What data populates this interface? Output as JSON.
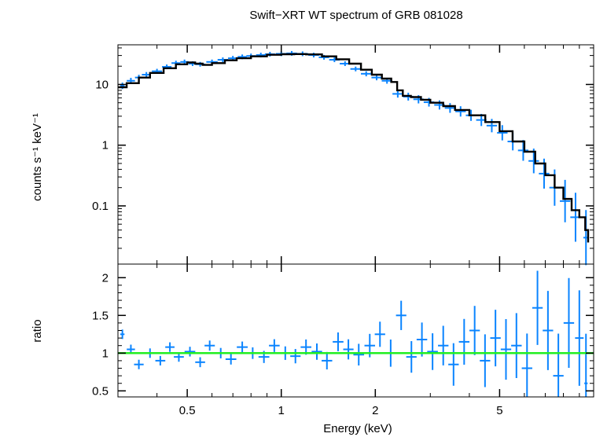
{
  "chart_data": {
    "type": "line",
    "title": "Swift−XRT WT spectrum of GRB 081028",
    "xlabel": "Energy (keV)",
    "x_scale": "log",
    "xlim": [
      0.3,
      10
    ],
    "x_ticks": [
      0.5,
      1,
      2,
      5
    ],
    "x_tick_labels": [
      "0.5",
      "1",
      "2",
      "5"
    ],
    "panels": [
      {
        "id": "spectrum",
        "ylabel": "counts s⁻¹ keV⁻¹",
        "y_scale": "log",
        "ylim": [
          0.011,
          45
        ],
        "y_ticks": [
          0.1,
          1,
          10
        ],
        "y_tick_labels": [
          "0.1",
          "1",
          "10"
        ],
        "series": [
          {
            "name": "data",
            "style": "errorbar",
            "color": "#0a84ff",
            "points": [
              [
                0.31,
                9.5
              ],
              [
                0.33,
                11.5
              ],
              [
                0.35,
                13.0
              ],
              [
                0.37,
                14.5
              ],
              [
                0.4,
                16.5
              ],
              [
                0.43,
                19.5
              ],
              [
                0.46,
                22.5
              ],
              [
                0.49,
                23.5
              ],
              [
                0.52,
                22.0
              ],
              [
                0.55,
                21.5
              ],
              [
                0.6,
                23.5
              ],
              [
                0.65,
                25.5
              ],
              [
                0.7,
                27.0
              ],
              [
                0.75,
                28.5
              ],
              [
                0.8,
                29.5
              ],
              [
                0.86,
                30.5
              ],
              [
                0.92,
                31.5
              ],
              [
                1.0,
                32.0
              ],
              [
                1.08,
                32.5
              ],
              [
                1.17,
                32.0
              ],
              [
                1.27,
                30.5
              ],
              [
                1.37,
                28.0
              ],
              [
                1.48,
                25.5
              ],
              [
                1.6,
                22.0
              ],
              [
                1.73,
                18.0
              ],
              [
                1.87,
                15.0
              ],
              [
                2.02,
                13.0
              ],
              [
                2.18,
                11.5
              ],
              [
                2.36,
                7.0
              ],
              [
                2.55,
                6.3
              ],
              [
                2.75,
                5.7
              ],
              [
                2.97,
                5.1
              ],
              [
                3.21,
                4.6
              ],
              [
                3.47,
                4.1
              ],
              [
                3.75,
                3.6
              ],
              [
                4.05,
                3.1
              ],
              [
                4.37,
                2.6
              ],
              [
                4.72,
                2.1
              ],
              [
                5.1,
                1.6
              ],
              [
                5.51,
                1.15
              ],
              [
                5.95,
                0.82
              ],
              [
                6.43,
                0.55
              ],
              [
                6.94,
                0.34
              ],
              [
                7.5,
                0.2
              ],
              [
                8.1,
                0.12
              ],
              [
                8.75,
                0.065
              ],
              [
                9.45,
                0.03
              ]
            ]
          },
          {
            "name": "model",
            "style": "step",
            "color": "#000000",
            "points": [
              [
                0.3,
                9.0
              ],
              [
                0.32,
                10.5
              ],
              [
                0.35,
                13.0
              ],
              [
                0.38,
                15.5
              ],
              [
                0.42,
                18.5
              ],
              [
                0.46,
                21.5
              ],
              [
                0.5,
                23.0
              ],
              [
                0.53,
                22.0
              ],
              [
                0.56,
                21.0
              ],
              [
                0.6,
                22.5
              ],
              [
                0.66,
                25.0
              ],
              [
                0.72,
                27.0
              ],
              [
                0.8,
                29.0
              ],
              [
                0.9,
                30.8
              ],
              [
                1.0,
                31.5
              ],
              [
                1.1,
                31.7
              ],
              [
                1.2,
                31.3
              ],
              [
                1.35,
                29.0
              ],
              [
                1.5,
                26.0
              ],
              [
                1.65,
                22.0
              ],
              [
                1.8,
                17.5
              ],
              [
                1.95,
                14.5
              ],
              [
                2.1,
                12.5
              ],
              [
                2.25,
                11.0
              ],
              [
                2.35,
                8.0
              ],
              [
                2.45,
                6.5
              ],
              [
                2.6,
                6.2
              ],
              [
                2.8,
                5.6
              ],
              [
                3.0,
                5.0
              ],
              [
                3.3,
                4.4
              ],
              [
                3.6,
                3.8
              ],
              [
                4.0,
                3.1
              ],
              [
                4.5,
                2.4
              ],
              [
                5.0,
                1.7
              ],
              [
                5.5,
                1.15
              ],
              [
                6.0,
                0.78
              ],
              [
                6.5,
                0.5
              ],
              [
                7.0,
                0.32
              ],
              [
                7.5,
                0.2
              ],
              [
                8.0,
                0.13
              ],
              [
                8.5,
                0.085
              ],
              [
                9.0,
                0.065
              ],
              [
                9.4,
                0.04
              ],
              [
                9.6,
                0.025
              ]
            ]
          }
        ]
      },
      {
        "id": "ratio",
        "ylabel": "ratio",
        "y_scale": "linear",
        "ylim": [
          0.42,
          2.18
        ],
        "y_ticks": [
          0.5,
          1,
          1.5,
          2
        ],
        "y_tick_labels": [
          "0.5",
          "1",
          "1.5",
          "2"
        ],
        "reference_line": {
          "y": 1,
          "color": "#22ee22"
        },
        "series": [
          {
            "name": "ratio",
            "style": "errorbar",
            "color": "#0a84ff",
            "points": [
              [
                0.31,
                1.25
              ],
              [
                0.33,
                1.05
              ],
              [
                0.35,
                0.85
              ],
              [
                0.38,
                1.0
              ],
              [
                0.41,
                0.9
              ],
              [
                0.44,
                1.08
              ],
              [
                0.47,
                0.95
              ],
              [
                0.51,
                1.02
              ],
              [
                0.55,
                0.88
              ],
              [
                0.59,
                1.1
              ],
              [
                0.64,
                1.0
              ],
              [
                0.69,
                0.92
              ],
              [
                0.75,
                1.08
              ],
              [
                0.81,
                1.0
              ],
              [
                0.88,
                0.95
              ],
              [
                0.95,
                1.1
              ],
              [
                1.03,
                1.0
              ],
              [
                1.11,
                0.96
              ],
              [
                1.2,
                1.08
              ],
              [
                1.3,
                1.02
              ],
              [
                1.4,
                0.9
              ],
              [
                1.52,
                1.15
              ],
              [
                1.64,
                1.05
              ],
              [
                1.77,
                0.98
              ],
              [
                1.92,
                1.1
              ],
              [
                2.07,
                1.25
              ],
              [
                2.24,
                1.0
              ],
              [
                2.42,
                1.5
              ],
              [
                2.61,
                0.95
              ],
              [
                2.82,
                1.18
              ],
              [
                3.05,
                1.02
              ],
              [
                3.3,
                1.1
              ],
              [
                3.56,
                0.85
              ],
              [
                3.85,
                1.15
              ],
              [
                4.16,
                1.3
              ],
              [
                4.49,
                0.9
              ],
              [
                4.85,
                1.2
              ],
              [
                5.24,
                1.05
              ],
              [
                5.66,
                1.1
              ],
              [
                6.12,
                0.8
              ],
              [
                6.61,
                1.6
              ],
              [
                7.14,
                1.3
              ],
              [
                7.71,
                0.7
              ],
              [
                8.33,
                1.4
              ],
              [
                9.0,
                1.2
              ],
              [
                9.45,
                0.6
              ]
            ]
          }
        ]
      }
    ]
  }
}
